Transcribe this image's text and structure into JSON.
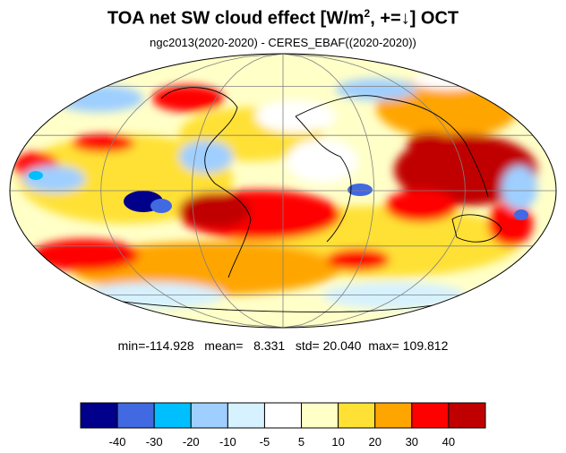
{
  "title": {
    "main": "TOA net SW cloud effect [W/m",
    "superscript": "2",
    "suffix": ", +=↓]  OCT"
  },
  "subtitle": "ngc2013(2020-2020) - CERES_EBAF((2020-2020))",
  "stats": {
    "min_label": "min=",
    "min": "-114.928",
    "mean_label": "mean=",
    "mean": "8.331",
    "std_label": "std=",
    "std": "20.040",
    "max_label": "max=",
    "max": "109.812"
  },
  "colorbar": {
    "colors": [
      "#00008b",
      "#4169e1",
      "#00bfff",
      "#9fcfff",
      "#d6f1ff",
      "#ffffff",
      "#ffffc8",
      "#ffe135",
      "#ffa500",
      "#ff0000",
      "#c00000"
    ],
    "tick_labels": [
      "-40",
      "-30",
      "-20",
      "-10",
      "-5",
      "5",
      "10",
      "20",
      "30",
      "40"
    ]
  },
  "map": {
    "projection": "Mollweide",
    "background": "#ffffff",
    "coastline_color": "#000000",
    "graticule_color": "#808080"
  }
}
